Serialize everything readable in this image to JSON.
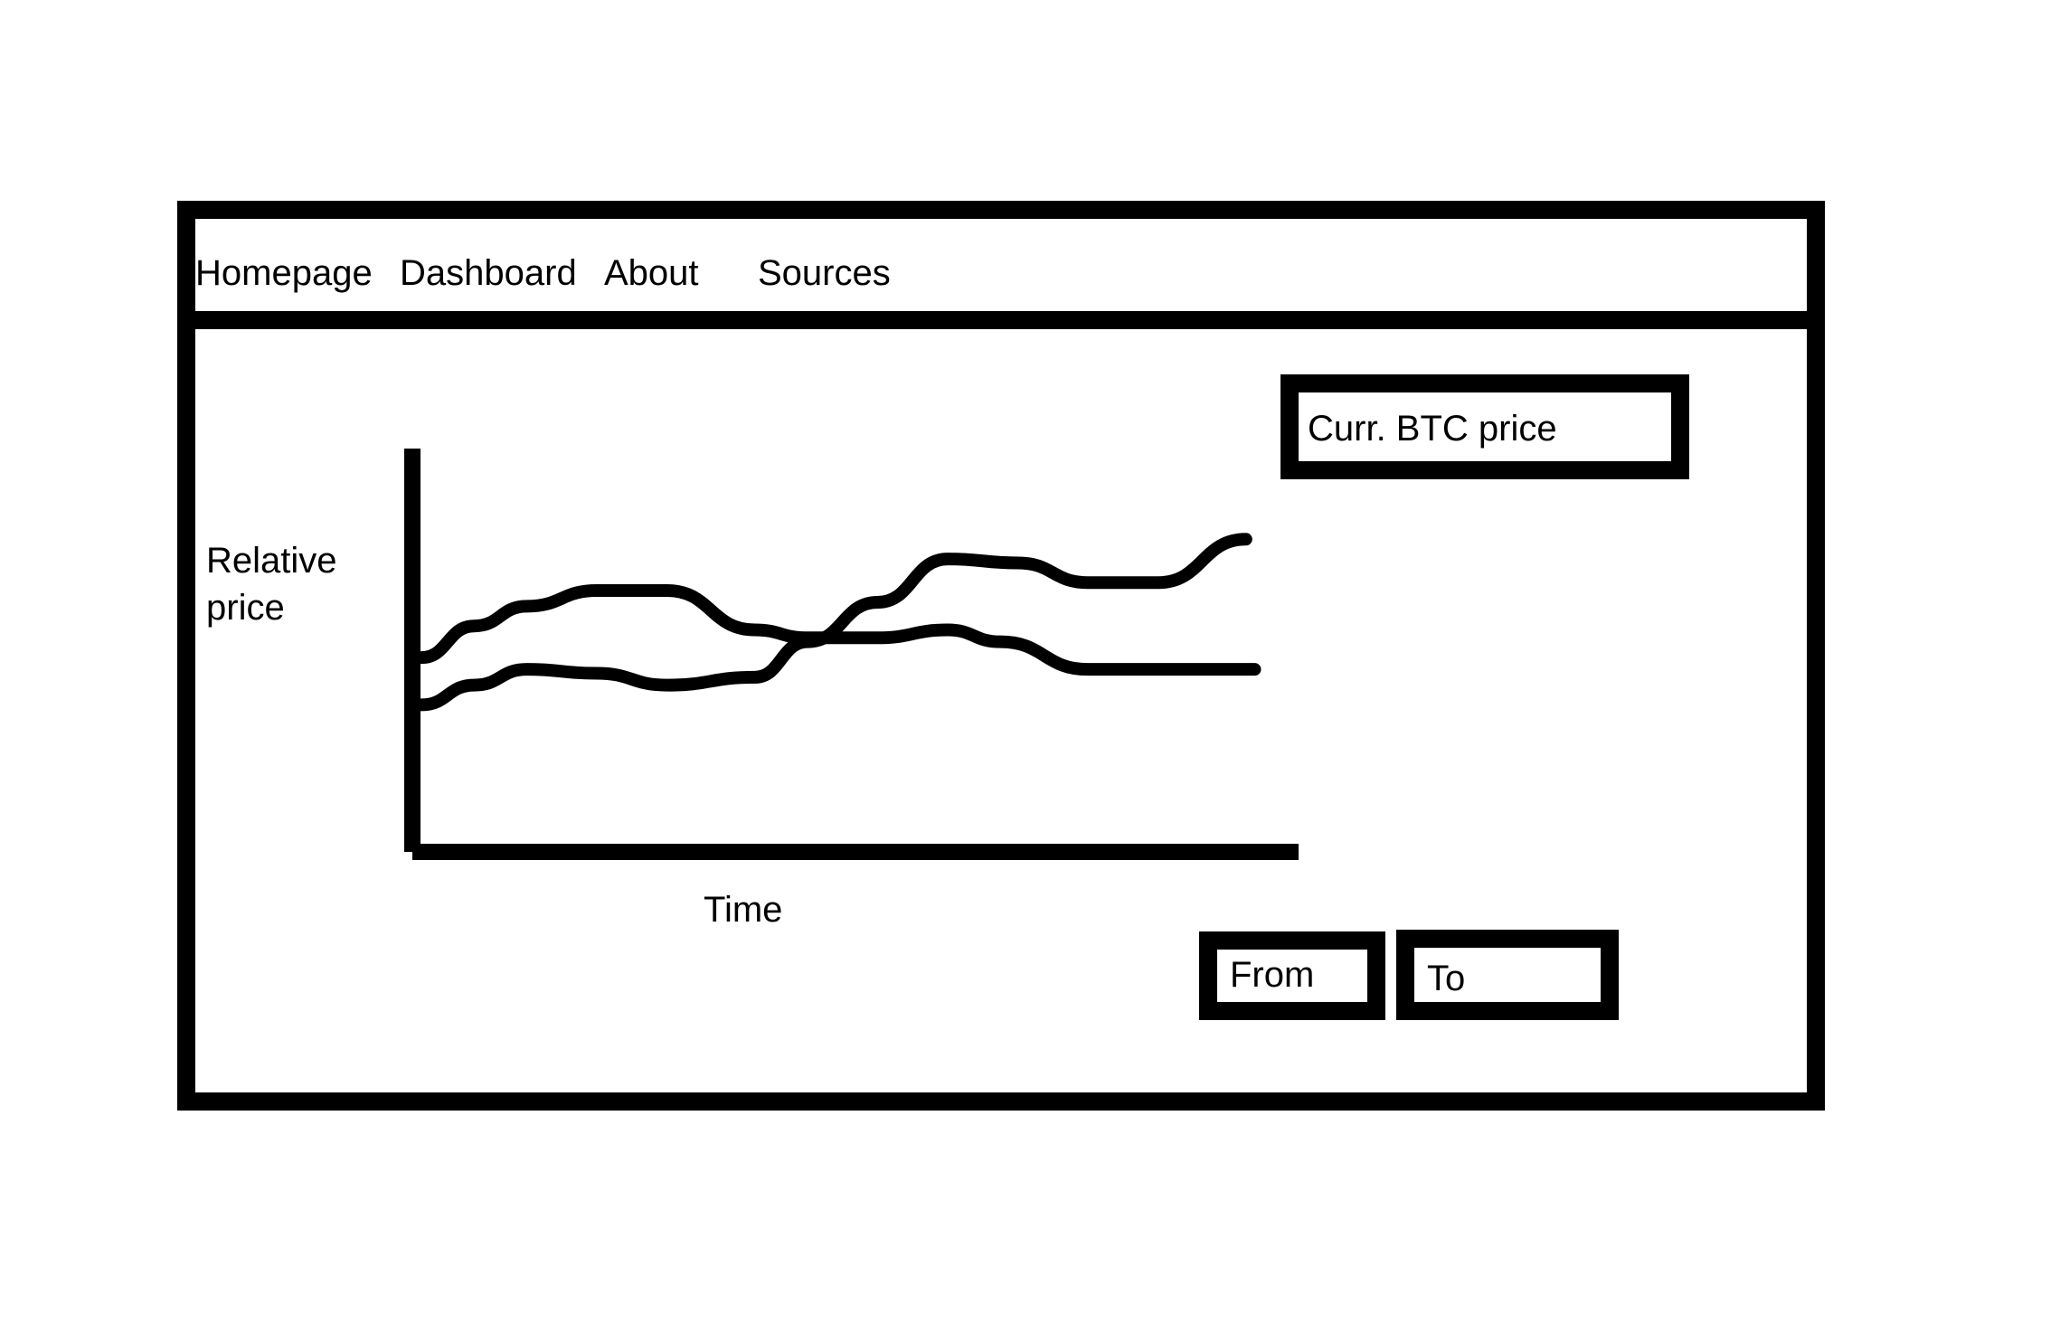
{
  "nav": {
    "items": [
      {
        "label": "Homepage"
      },
      {
        "label": "Dashboard"
      },
      {
        "label": "About"
      },
      {
        "label": "Sources"
      }
    ]
  },
  "main": {
    "btc_price_label": "Curr. BTC price",
    "from_field": "From",
    "to_field": "To"
  },
  "chart_data": {
    "type": "line",
    "xlabel": "Time",
    "ylabel": "Relative\nprice",
    "grid": false,
    "legend": "none",
    "series": [
      {
        "values": [
          [
            0.0,
            0.47
          ],
          [
            0.06,
            0.55
          ],
          [
            0.12,
            0.6
          ],
          [
            0.2,
            0.64
          ],
          [
            0.28,
            0.64
          ],
          [
            0.38,
            0.54
          ],
          [
            0.44,
            0.52
          ],
          [
            0.52,
            0.52
          ],
          [
            0.6,
            0.54
          ],
          [
            0.66,
            0.51
          ],
          [
            0.76,
            0.44
          ],
          [
            0.84,
            0.44
          ],
          [
            0.95,
            0.44
          ]
        ]
      },
      {
        "values": [
          [
            0.0,
            0.35
          ],
          [
            0.06,
            0.4
          ],
          [
            0.12,
            0.44
          ],
          [
            0.2,
            0.43
          ],
          [
            0.28,
            0.4
          ],
          [
            0.38,
            0.42
          ],
          [
            0.44,
            0.51
          ],
          [
            0.52,
            0.61
          ],
          [
            0.6,
            0.72
          ],
          [
            0.68,
            0.71
          ],
          [
            0.76,
            0.66
          ],
          [
            0.84,
            0.66
          ],
          [
            0.94,
            0.77
          ]
        ]
      }
    ]
  }
}
